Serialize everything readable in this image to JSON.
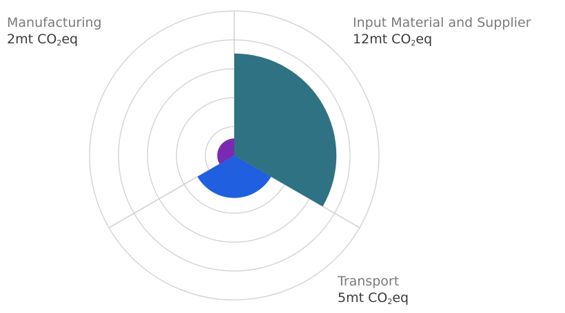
{
  "chart_data": {
    "type": "polar-area",
    "title": "",
    "unit_prefix": "mt CO",
    "unit_sub": "2",
    "unit_suffix": "eq",
    "rmax": 17,
    "rings": 5,
    "grid": true,
    "legend": "none",
    "segments": [
      {
        "name": "Input Material and Supplier",
        "value": 12,
        "value_text": "12",
        "color": "#2f7283"
      },
      {
        "name": "Transport",
        "value": 5,
        "value_text": "5",
        "color": "#1f5fe0"
      },
      {
        "name": "Manufacturing",
        "value": 2,
        "value_text": "2",
        "color": "#7a2ab0"
      }
    ]
  }
}
